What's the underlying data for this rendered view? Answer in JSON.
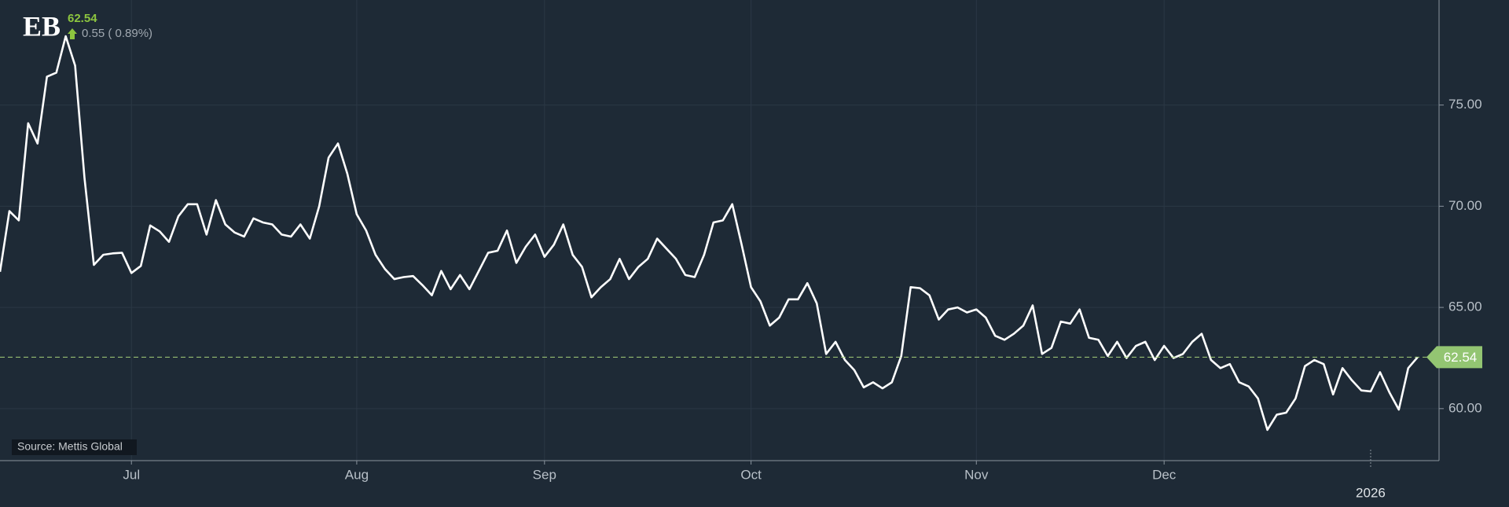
{
  "header": {
    "symbol": "EB",
    "price": "62.54",
    "change": "0.55 ( 0.89%)",
    "source": "Source: Mettis Global"
  },
  "chart_data": {
    "type": "line",
    "categories": [
      null,
      null,
      null,
      null,
      null,
      null,
      null,
      null,
      null,
      null,
      null,
      null,
      null,
      null,
      "Jul",
      null,
      null,
      null,
      null,
      null,
      null,
      null,
      null,
      null,
      null,
      null,
      null,
      null,
      null,
      null,
      null,
      null,
      null,
      null,
      null,
      null,
      null,
      null,
      "Aug",
      null,
      null,
      null,
      null,
      null,
      null,
      null,
      null,
      null,
      null,
      null,
      null,
      null,
      null,
      null,
      null,
      null,
      null,
      null,
      "Sep",
      null,
      null,
      null,
      null,
      null,
      null,
      null,
      null,
      null,
      null,
      null,
      null,
      null,
      null,
      null,
      null,
      null,
      null,
      null,
      null,
      null,
      "Oct",
      null,
      null,
      null,
      null,
      null,
      null,
      null,
      null,
      null,
      null,
      null,
      null,
      null,
      null,
      null,
      null,
      null,
      null,
      null,
      null,
      null,
      null,
      null,
      "Nov",
      null,
      null,
      null,
      null,
      null,
      null,
      null,
      null,
      null,
      null,
      null,
      null,
      null,
      null,
      null,
      null,
      null,
      null,
      null,
      "Dec",
      null,
      null,
      null,
      null,
      null,
      null,
      null,
      null,
      null,
      null,
      null,
      null,
      null,
      null,
      null,
      null,
      null,
      null,
      null,
      null,
      null,
      "2026",
      null,
      null,
      null,
      null,
      null
    ],
    "series": [
      {
        "name": "EB",
        "color": "#ffffff",
        "values": [
          66.76,
          69.76,
          69.3,
          74.1,
          73.1,
          76.4,
          76.6,
          78.4,
          76.95,
          71.4,
          67.1,
          67.6,
          67.67,
          67.7,
          66.7,
          67.05,
          69.05,
          68.76,
          68.24,
          69.5,
          70.1,
          70.1,
          68.6,
          70.3,
          69.1,
          68.7,
          68.5,
          69.4,
          69.2,
          69.1,
          68.6,
          68.5,
          69.1,
          68.4,
          70,
          72.4,
          73.1,
          71.6,
          69.6,
          68.8,
          67.6,
          66.9,
          66.4,
          66.5,
          66.55,
          66.1,
          65.6,
          66.8,
          65.9,
          66.6,
          65.9,
          66.8,
          67.7,
          67.8,
          68.8,
          67.2,
          68,
          68.6,
          67.5,
          68.1,
          69.1,
          67.6,
          67,
          65.5,
          66,
          66.4,
          67.4,
          66.4,
          67,
          67.4,
          68.4,
          67.9,
          67.4,
          66.6,
          66.5,
          67.6,
          69.2,
          69.3,
          70.1,
          68.1,
          66,
          65.3,
          64.1,
          64.5,
          65.4,
          65.4,
          66.2,
          65.2,
          62.7,
          63.3,
          62.4,
          61.9,
          61.05,
          61.3,
          61,
          61.3,
          62.6,
          66,
          65.95,
          65.6,
          64.4,
          64.9,
          65,
          64.75,
          64.9,
          64.5,
          63.6,
          63.4,
          63.7,
          64.1,
          65.1,
          62.7,
          63,
          64.3,
          64.2,
          64.9,
          63.5,
          63.4,
          62.6,
          63.3,
          62.5,
          63.1,
          63.3,
          62.4,
          63.1,
          62.5,
          62.7,
          63.3,
          63.7,
          62.4,
          62,
          62.2,
          61.3,
          61.1,
          60.5,
          58.95,
          59.7,
          59.8,
          60.5,
          62.1,
          62.4,
          62.2,
          60.7,
          62,
          61.4,
          60.9,
          60.85,
          61.8,
          60.8,
          59.95,
          62,
          62.54
        ]
      }
    ],
    "reference_line": 62.54,
    "ylim": [
      57.43,
      80.19
    ],
    "yticks": [
      {
        "value": 60,
        "label": "60.00"
      },
      {
        "value": 65,
        "label": "65.00"
      },
      {
        "value": 70,
        "label": "70.00"
      },
      {
        "value": 75,
        "label": "75.00"
      }
    ],
    "grid": true
  }
}
